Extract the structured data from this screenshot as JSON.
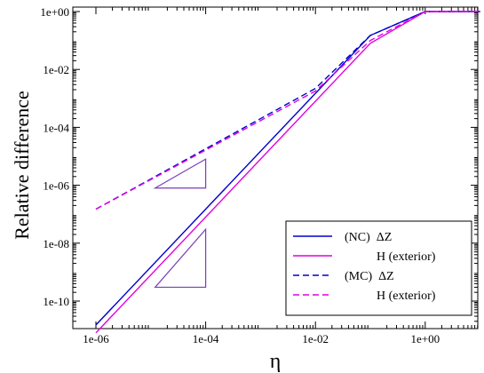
{
  "chart_data": {
    "type": "line",
    "xlabel": "η",
    "ylabel": "Relative difference",
    "xscale": "log",
    "yscale": "log",
    "xlim": [
      1e-06,
      10
    ],
    "ylim": [
      1e-11,
      1
    ],
    "xticks": [
      {
        "value": 1e-06,
        "label": "1e-06"
      },
      {
        "value": 0.0001,
        "label": "1e-04"
      },
      {
        "value": 0.01,
        "label": "1e-02"
      },
      {
        "value": 1,
        "label": "1e+00"
      }
    ],
    "yticks": [
      {
        "value": 1e-10,
        "label": "1e-10"
      },
      {
        "value": 1e-08,
        "label": "1e-08"
      },
      {
        "value": 1e-06,
        "label": "1e-06"
      },
      {
        "value": 0.0001,
        "label": "1e-04"
      },
      {
        "value": 0.01,
        "label": "1e-02"
      },
      {
        "value": 1,
        "label": "1e+00"
      }
    ],
    "legend_position": "bottom-right",
    "series": [
      {
        "name": "(NC)  ΔZ",
        "color": "#0000cc",
        "dash": "solid",
        "x": [
          1e-06,
          0.1,
          1,
          10
        ],
        "y": [
          1.5e-11,
          0.15,
          1,
          1
        ]
      },
      {
        "name": "H (exterior)",
        "color": "#e000e0",
        "dash": "solid",
        "x": [
          1e-06,
          0.1,
          1,
          10
        ],
        "y": [
          8e-12,
          0.08,
          1,
          1
        ]
      },
      {
        "name": "(MC)  ΔZ",
        "color": "#0000cc",
        "dash": "dashed",
        "x": [
          1e-06,
          0.01,
          0.1,
          1,
          10
        ],
        "y": [
          1.5e-07,
          0.0022,
          0.15,
          1,
          1
        ]
      },
      {
        "name": "H (exterior)",
        "color": "#e000e0",
        "dash": "dashed",
        "x": [
          1e-06,
          0.01,
          0.1,
          1,
          10
        ],
        "y": [
          1.5e-07,
          0.0018,
          0.1,
          1,
          1
        ]
      }
    ],
    "slope_triangles": [
      {
        "color": "#7a3fb5",
        "x": [
          1.2e-05,
          0.0001
        ],
        "y": [
          8e-07,
          8e-06
        ]
      },
      {
        "color": "#7a3fb5",
        "x": [
          1.2e-05,
          0.0001
        ],
        "y": [
          3e-10,
          3e-08
        ]
      }
    ]
  }
}
